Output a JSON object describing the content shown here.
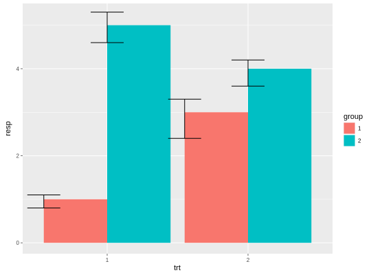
{
  "chart_data": {
    "type": "bar",
    "xlabel": "trt",
    "ylabel": "resp",
    "categories": [
      "1",
      "2"
    ],
    "ylim": [
      -0.25,
      5.5
    ],
    "yticks": [
      "0",
      "2",
      "4"
    ],
    "legend_title": "group",
    "legend_position": "right",
    "grid": true,
    "series": [
      {
        "name": "1",
        "color": "#F8766D",
        "values": [
          1,
          3
        ],
        "lower": [
          0.8,
          2.4
        ],
        "upper": [
          1.1,
          3.3
        ]
      },
      {
        "name": "2",
        "color": "#00BFC4",
        "values": [
          5,
          4
        ],
        "lower": [
          4.6,
          3.6
        ],
        "upper": [
          5.3,
          4.2
        ]
      }
    ]
  }
}
